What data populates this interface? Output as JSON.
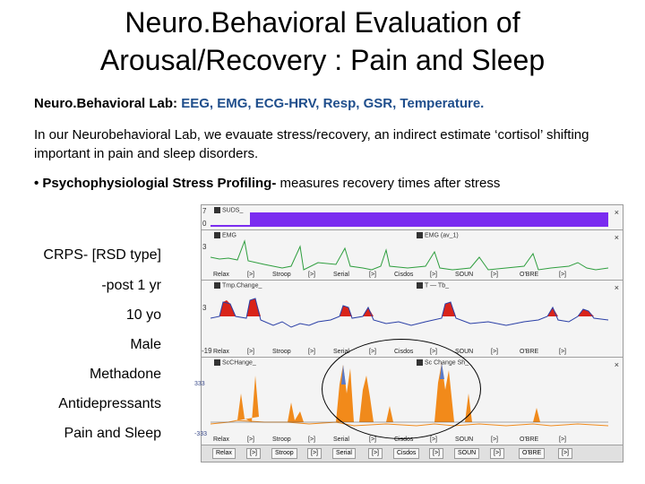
{
  "slide": {
    "title_line1": "Neuro.Behavioral Evaluation of",
    "title_line2": "Arousal/Recovery : Pain and Sleep",
    "lab_prefix": "Neuro.Behavioral Lab: ",
    "lab_list": "EEG, EMG, ECG-HRV, Resp, GSR, Temperature.",
    "paragraph": "In our Neurobehavioral Lab, we evauate stress/recovery, an  indirect estimate ‘cortisol’ shifting important in pain and sleep disorders.",
    "bullet_bold": "• Psychophysiologial Stress Profiling-",
    "bullet_rest": " measures recovery times after stress"
  },
  "patient": {
    "line1": "CRPS- [RSD type]",
    "line2": "-post 1 yr",
    "line3": "10 yo",
    "line4": "Male",
    "line5": "Methadone",
    "line6": "Antidepressants",
    "line7": "Pain and Sleep"
  },
  "panels": {
    "p1": {
      "label": "SUDS_",
      "y_top": "7",
      "y_bottom": "0",
      "close": "×"
    },
    "p2": {
      "label": "EMG",
      "label_right": "EMG (av_1)",
      "y_top": "3",
      "close": "×"
    },
    "p3": {
      "label": "Tmp.Change_",
      "label_right": "T — Tb_",
      "y_top": "3",
      "y_bottom": "-19",
      "close": "×"
    },
    "p4": {
      "label": "ScCHange_",
      "label_right": "Sc Change Sh_",
      "y_top": "333",
      "y_bottom": "-333",
      "close": "×"
    }
  },
  "phases": {
    "relax": "Relax",
    "b1": "[>]",
    "stroop": "Stroop",
    "b2": "[>]",
    "serial": "Serial",
    "b3": "[>]",
    "cisdos": "Cisdos",
    "b4": "[>]",
    "soun": "SOUN",
    "b5": "[>]",
    "obre": "O'BRE",
    "b6": "[>]"
  },
  "colors": {
    "suds": "#7b2cf0",
    "emg": "#2e9e3e",
    "temp_line": "#2a3fa6",
    "temp_fill": "#d9241a",
    "sc_fill": "#f08a1c"
  }
}
